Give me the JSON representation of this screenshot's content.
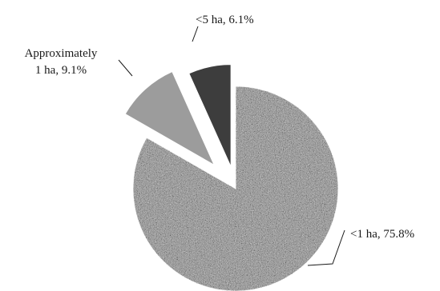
{
  "chart_data": {
    "type": "pie",
    "exploded": true,
    "slices": [
      {
        "label": "<1 ha, 75.8%",
        "value": 75.8,
        "color": "#8a8a8a",
        "texture": "speckled-gray",
        "label_lines": [
          "<1 ha, 75.8%"
        ]
      },
      {
        "label": "Approximately 1 ha, 9.1%",
        "value": 9.1,
        "color": "#9c9c9c",
        "texture": "solid",
        "label_lines": [
          "Approximately",
          "1 ha, 9.1%"
        ]
      },
      {
        "label": "<5 ha, 6.1%",
        "value": 6.1,
        "color": "#3d3d3d",
        "texture": "solid",
        "label_lines": [
          "<5 ha, 6.1%"
        ]
      }
    ]
  }
}
